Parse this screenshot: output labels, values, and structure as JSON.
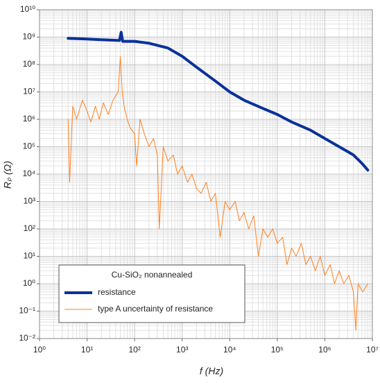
{
  "chart_data": {
    "type": "line",
    "xlabel": "f (Hz)",
    "ylabel": "Rₚ (Ω)",
    "log_x": true,
    "log_y": true,
    "grid": true,
    "minor_grid": true,
    "xlim": [
      1,
      10000000
    ],
    "ylim": [
      0.01,
      10000000000
    ],
    "xticks": [
      {
        "value": 1,
        "label": "10⁰"
      },
      {
        "value": 10,
        "label": "10¹"
      },
      {
        "value": 100,
        "label": "10²"
      },
      {
        "value": 1000,
        "label": "10³"
      },
      {
        "value": 10000,
        "label": "10⁴"
      },
      {
        "value": 100000,
        "label": "10⁵"
      },
      {
        "value": 1000000,
        "label": "10⁶"
      },
      {
        "value": 10000000,
        "label": "10⁷"
      }
    ],
    "yticks": [
      {
        "value": 0.01,
        "label": "10⁻²"
      },
      {
        "value": 0.1,
        "label": "10⁻¹"
      },
      {
        "value": 1,
        "label": "10⁰"
      },
      {
        "value": 10,
        "label": "10¹"
      },
      {
        "value": 100,
        "label": "10²"
      },
      {
        "value": 1000,
        "label": "10³"
      },
      {
        "value": 10000,
        "label": "10⁴"
      },
      {
        "value": 100000,
        "label": "10⁵"
      },
      {
        "value": 1000000,
        "label": "10⁶"
      },
      {
        "value": 10000000,
        "label": "10⁷"
      },
      {
        "value": 100000000,
        "label": "10⁸"
      },
      {
        "value": 1000000000,
        "label": "10⁹"
      },
      {
        "value": 10000000000,
        "label": "10¹⁰"
      }
    ],
    "legend_title": "Cu-SiO₂ nonannealed",
    "legend": "lower left",
    "series": [
      {
        "name": "type A uncertainty of resistance",
        "color": "#ff7f1e",
        "width": 1,
        "x": [
          4,
          4.3,
          5,
          6,
          8,
          10,
          12,
          15,
          18,
          22,
          28,
          35,
          45,
          50,
          55,
          60,
          70,
          80,
          100,
          110,
          130,
          160,
          200,
          250,
          300,
          330,
          400,
          500,
          650,
          800,
          1000,
          1300,
          1600,
          2000,
          2500,
          3200,
          4000,
          5000,
          6300,
          8000,
          10000,
          13000,
          16000,
          20000,
          25000,
          32000,
          40000,
          50000,
          63000,
          80000,
          100000,
          130000,
          160000,
          200000,
          250000,
          320000,
          400000,
          500000,
          630000,
          800000,
          1000000,
          1300000,
          1600000,
          2000000,
          2500000,
          3200000,
          4000000,
          4500000,
          5000000,
          6300000,
          8000000
        ],
        "values": [
          1000000,
          5000,
          3000000,
          1000000,
          5000000,
          2000000,
          800000,
          3000000,
          1000000,
          4000000,
          1500000,
          5000000,
          10000000,
          200000000,
          10000000,
          3000000,
          1000000,
          500000,
          300000,
          20000,
          1000000,
          300000,
          100000,
          200000,
          50000,
          100,
          100000,
          30000,
          50000,
          10000,
          20000,
          5000,
          10000,
          3000,
          2000,
          5000,
          1000,
          2000,
          50,
          1000,
          500,
          1000,
          200,
          400,
          100,
          300,
          10,
          100,
          50,
          100,
          30,
          50,
          5,
          20,
          10,
          30,
          5,
          10,
          3,
          10,
          2,
          5,
          1,
          3,
          1,
          2,
          0.5,
          0.02,
          1,
          0.5,
          1
        ]
      },
      {
        "name": "resistance",
        "color": "#0a319a",
        "width": 4,
        "x": [
          4,
          10,
          20,
          48,
          52,
          56,
          100,
          200,
          500,
          1000,
          2000,
          5000,
          10000,
          20000,
          50000,
          100000,
          200000,
          500000,
          1000000,
          2000000,
          4000000,
          6000000,
          8000000
        ],
        "values": [
          900000000,
          850000000,
          800000000,
          750000000,
          1500000000,
          700000000,
          700000000,
          600000000,
          400000000,
          200000000,
          80000000,
          25000000,
          10000000,
          5000000,
          2500000,
          1500000,
          800000,
          400000,
          200000,
          100000,
          50000,
          25000,
          14000
        ]
      }
    ]
  }
}
